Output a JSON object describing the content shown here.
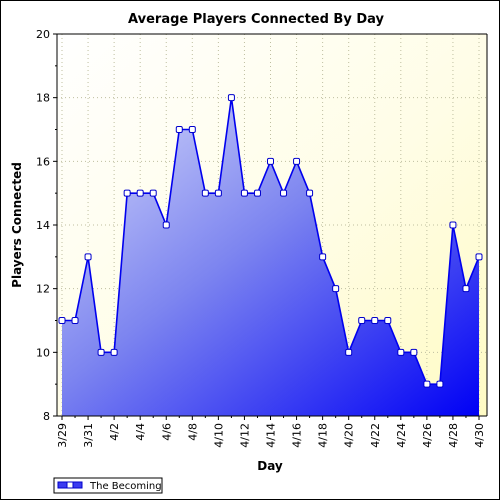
{
  "chart_data": {
    "type": "area",
    "title": "Average Players Connected By Day",
    "xlabel": "Day",
    "ylabel": "Players Connected",
    "ylim": [
      8,
      20
    ],
    "yticks": [
      8,
      10,
      12,
      14,
      16,
      18,
      20
    ],
    "grid": true,
    "legend_position": "bottom-left",
    "x": [
      "3/29",
      "3/30",
      "3/31",
      "4/1",
      "4/2",
      "4/3",
      "4/4",
      "4/5",
      "4/6",
      "4/7",
      "4/8",
      "4/9",
      "4/10",
      "4/11",
      "4/12",
      "4/13",
      "4/14",
      "4/15",
      "4/16",
      "4/17",
      "4/18",
      "4/19",
      "4/20",
      "4/21",
      "4/22",
      "4/23",
      "4/24",
      "4/25",
      "4/26",
      "4/27",
      "4/28",
      "4/29",
      "4/30"
    ],
    "xtick_labels": [
      "3/29",
      "3/31",
      "4/2",
      "4/4",
      "4/6",
      "4/8",
      "4/10",
      "4/12",
      "4/14",
      "4/16",
      "4/18",
      "4/20",
      "4/22",
      "4/24",
      "4/26",
      "4/28",
      "4/30"
    ],
    "series": [
      {
        "name": "The Becoming",
        "color": "#0000ee",
        "values": [
          11,
          11,
          13,
          10,
          10,
          15,
          15,
          15,
          14,
          17,
          17,
          15,
          15,
          18,
          15,
          15,
          16,
          15,
          16,
          15,
          13,
          12,
          10,
          11,
          11,
          11,
          10,
          10,
          9,
          9,
          14,
          12,
          13
        ]
      }
    ]
  }
}
